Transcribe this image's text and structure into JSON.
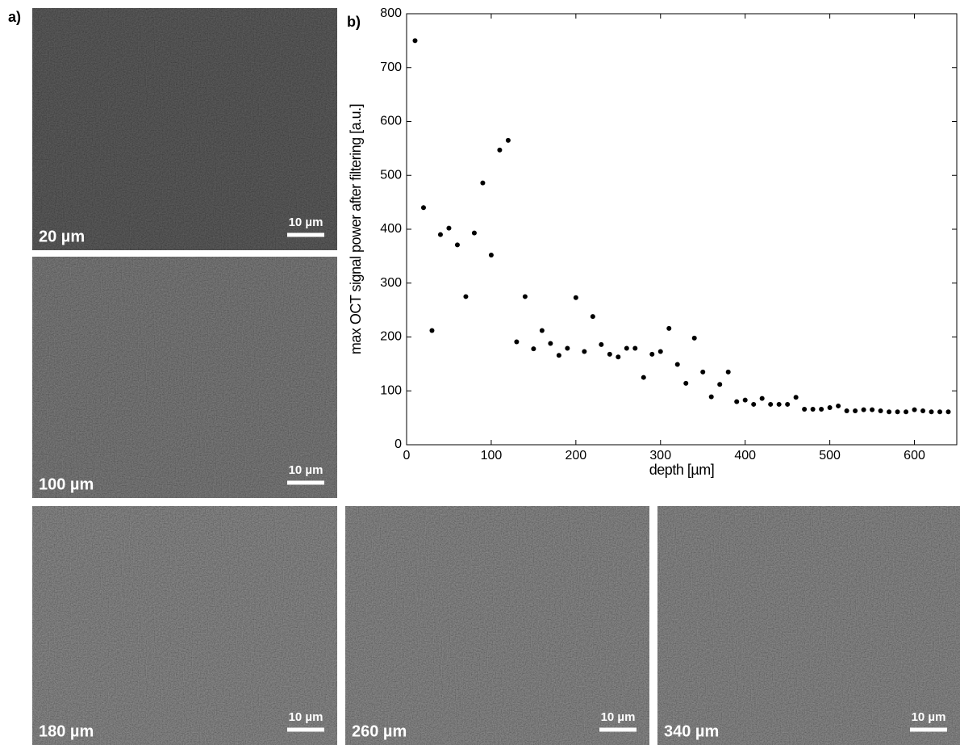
{
  "panel_a_label": "a)",
  "images": [
    {
      "depth_label": "20 µm",
      "scale_bar_label": "10 µm"
    },
    {
      "depth_label": "100 µm",
      "scale_bar_label": "10 µm"
    },
    {
      "depth_label": "180 µm",
      "scale_bar_label": "10 µm"
    },
    {
      "depth_label": "260 µm",
      "scale_bar_label": "10 µm"
    },
    {
      "depth_label": "340 µm",
      "scale_bar_label": "10 µm"
    }
  ],
  "chart_data": {
    "type": "scatter",
    "panel_label": "b)",
    "x_label": "depth [µm]",
    "y_label": "max OCT signal power after filtering [a.u.]",
    "x": [
      10,
      20,
      30,
      40,
      50,
      60,
      70,
      80,
      90,
      100,
      110,
      120,
      130,
      140,
      150,
      160,
      170,
      180,
      190,
      200,
      210,
      220,
      230,
      240,
      250,
      260,
      270,
      280,
      290,
      300,
      310,
      320,
      330,
      340,
      350,
      360,
      370,
      380,
      390,
      400,
      410,
      420,
      430,
      440,
      450,
      460,
      470,
      480,
      490,
      500,
      510,
      520,
      530,
      540,
      550,
      560,
      570,
      580,
      590,
      600,
      610,
      620,
      630,
      640
    ],
    "values": [
      750,
      440,
      212,
      390,
      402,
      371,
      275,
      393,
      486,
      352,
      547,
      565,
      191,
      275,
      178,
      212,
      188,
      166,
      179,
      273,
      173,
      238,
      186,
      168,
      163,
      179,
      179,
      125,
      168,
      173,
      216,
      149,
      114,
      198,
      135,
      89,
      112,
      135,
      80,
      83,
      75,
      86,
      75,
      75,
      75,
      88,
      66,
      66,
      66,
      69,
      72,
      63,
      63,
      65,
      65,
      63,
      61,
      61,
      61,
      65,
      63,
      61,
      61,
      61
    ],
    "color": "#000000",
    "xlim": [
      0,
      650
    ],
    "ylim": [
      0,
      800
    ],
    "xticks": [
      0,
      100,
      200,
      300,
      400,
      500,
      600
    ],
    "yticks": [
      0,
      100,
      200,
      300,
      400,
      500,
      600,
      700,
      800
    ],
    "grid": false
  }
}
